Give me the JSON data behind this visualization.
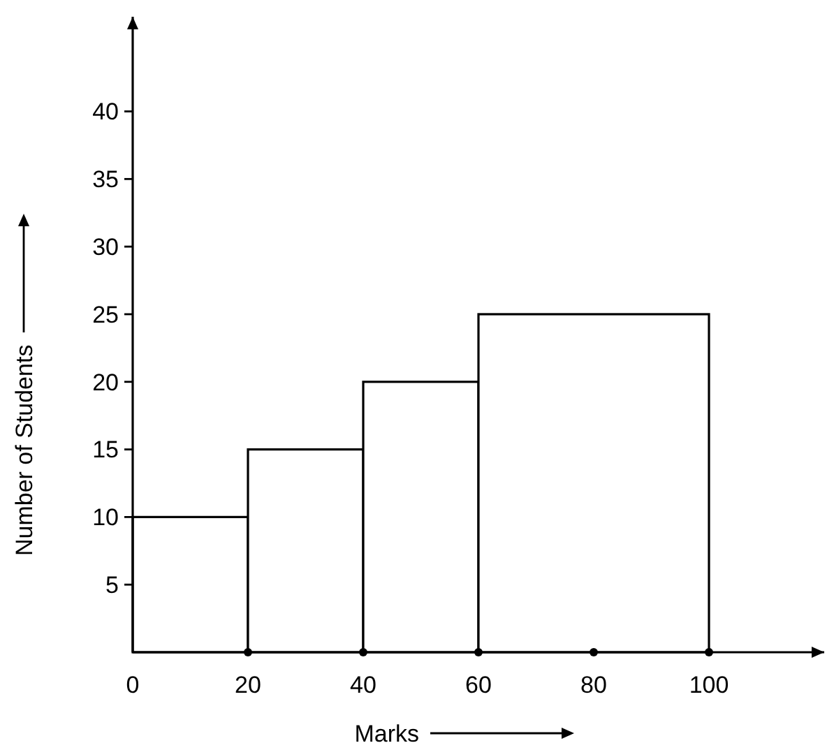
{
  "chart_data": {
    "type": "histogram",
    "xlabel": "Marks",
    "ylabel": "Number of Students",
    "bins": [
      0,
      20,
      40,
      60,
      100
    ],
    "values": [
      10,
      15,
      20,
      25
    ],
    "color": "#ffffff",
    "xlim": [
      0,
      120
    ],
    "ylim": [
      0,
      47
    ],
    "xticks": [
      0,
      20,
      40,
      60,
      80,
      100
    ],
    "yticks": [
      5,
      10,
      15,
      20,
      25,
      30,
      35,
      40
    ],
    "grid": false
  }
}
